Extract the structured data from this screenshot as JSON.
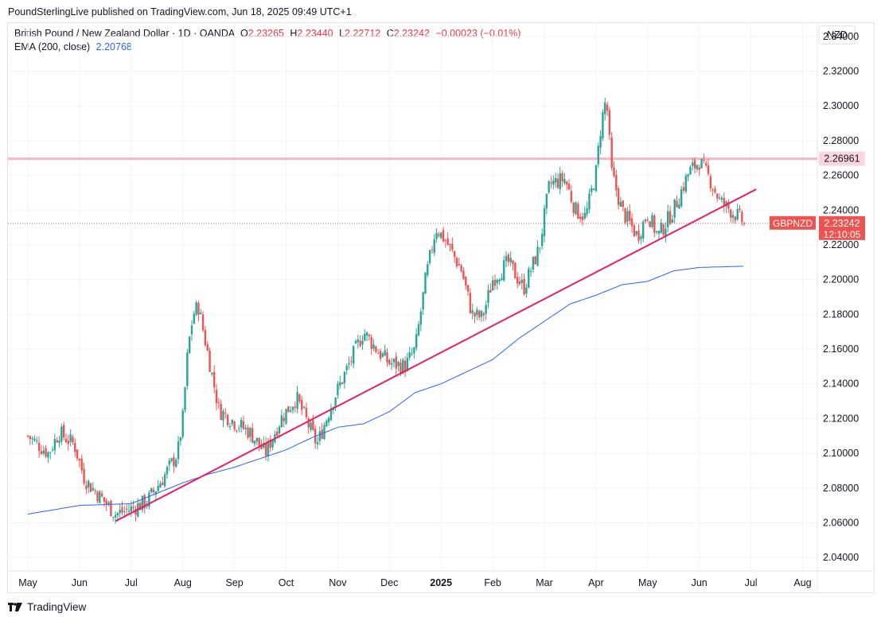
{
  "header": {
    "text": "PoundSterlingLive published on TradingView.com, Jun 18, 2025 09:49 UTC+1"
  },
  "legend": {
    "symbol": "British Pound / New Zealand Dollar · 1D · OANDA",
    "o_label": "O",
    "o_value": "2.23265",
    "h_label": "H",
    "h_value": "2.23440",
    "l_label": "L",
    "l_value": "2.22712",
    "c_label": "C",
    "c_value": "2.23242",
    "change": "−0.00023 (−0.01%)",
    "ema_label": "EMA (200, close)",
    "ema_value": "2.20768"
  },
  "currency_button": "NZD",
  "footer": {
    "brand": "TradingView"
  },
  "colors": {
    "up": "#26a69a",
    "down": "#ef5350",
    "ema": "#2962ff",
    "trend": "#e91e63",
    "level": "#f7b8c2"
  },
  "chart_data": {
    "type": "candlestick",
    "title": "British Pound / New Zealand Dollar · 1D · OANDA",
    "symbol": "GBPNZD",
    "ylim": [
      2.03,
      2.35
    ],
    "y_ticks": [
      "2.04000",
      "2.06000",
      "2.08000",
      "2.10000",
      "2.12000",
      "2.14000",
      "2.16000",
      "2.18000",
      "2.20000",
      "2.22000",
      "2.24000",
      "2.26000",
      "2.28000",
      "2.30000",
      "2.32000",
      "2.34000"
    ],
    "x_ticks": [
      {
        "label": "May",
        "month": 0
      },
      {
        "label": "Jun",
        "month": 1
      },
      {
        "label": "Jul",
        "month": 2
      },
      {
        "label": "Aug",
        "month": 3
      },
      {
        "label": "Sep",
        "month": 4
      },
      {
        "label": "Oct",
        "month": 5
      },
      {
        "label": "Nov",
        "month": 6
      },
      {
        "label": "Dec",
        "month": 7
      },
      {
        "label": "2025",
        "month": 8
      },
      {
        "label": "Feb",
        "month": 9
      },
      {
        "label": "Mar",
        "month": 10
      },
      {
        "label": "Apr",
        "month": 11
      },
      {
        "label": "May",
        "month": 12
      },
      {
        "label": "Jun",
        "month": 13
      },
      {
        "label": "Jul",
        "month": 14
      },
      {
        "label": "Aug",
        "month": 15
      }
    ],
    "closes": [
      [
        0.0,
        2.11
      ],
      [
        0.4,
        2.1
      ],
      [
        0.6,
        2.112
      ],
      [
        0.9,
        2.105
      ],
      [
        1.1,
        2.085
      ],
      [
        1.4,
        2.075
      ],
      [
        1.7,
        2.065
      ],
      [
        2.0,
        2.068
      ],
      [
        2.3,
        2.072
      ],
      [
        2.6,
        2.085
      ],
      [
        2.9,
        2.1
      ],
      [
        3.0,
        2.12
      ],
      [
        3.1,
        2.16
      ],
      [
        3.2,
        2.18
      ],
      [
        3.3,
        2.185
      ],
      [
        3.5,
        2.155
      ],
      [
        3.7,
        2.125
      ],
      [
        4.0,
        2.118
      ],
      [
        4.3,
        2.112
      ],
      [
        4.6,
        2.1
      ],
      [
        4.9,
        2.12
      ],
      [
        5.2,
        2.132
      ],
      [
        5.6,
        2.105
      ],
      [
        5.9,
        2.13
      ],
      [
        6.2,
        2.15
      ],
      [
        6.5,
        2.17
      ],
      [
        6.8,
        2.158
      ],
      [
        7.0,
        2.152
      ],
      [
        7.3,
        2.15
      ],
      [
        7.5,
        2.16
      ],
      [
        7.7,
        2.2
      ],
      [
        7.9,
        2.23
      ],
      [
        8.1,
        2.222
      ],
      [
        8.4,
        2.205
      ],
      [
        8.6,
        2.18
      ],
      [
        8.8,
        2.178
      ],
      [
        9.0,
        2.2
      ],
      [
        9.3,
        2.21
      ],
      [
        9.6,
        2.195
      ],
      [
        9.9,
        2.218
      ],
      [
        10.1,
        2.255
      ],
      [
        10.4,
        2.258
      ],
      [
        10.6,
        2.24
      ],
      [
        10.8,
        2.236
      ],
      [
        11.0,
        2.262
      ],
      [
        11.1,
        2.29
      ],
      [
        11.2,
        2.305
      ],
      [
        11.3,
        2.262
      ],
      [
        11.5,
        2.24
      ],
      [
        11.8,
        2.225
      ],
      [
        12.0,
        2.238
      ],
      [
        12.2,
        2.225
      ],
      [
        12.5,
        2.24
      ],
      [
        12.8,
        2.262
      ],
      [
        13.0,
        2.268
      ],
      [
        13.2,
        2.258
      ],
      [
        13.4,
        2.245
      ],
      [
        13.6,
        2.24
      ],
      [
        13.8,
        2.235
      ],
      [
        13.87,
        2.2324
      ]
    ],
    "ema": [
      [
        0.0,
        2.065
      ],
      [
        1.0,
        2.07
      ],
      [
        2.0,
        2.071
      ],
      [
        3.0,
        2.083
      ],
      [
        3.5,
        2.088
      ],
      [
        4.0,
        2.092
      ],
      [
        4.5,
        2.097
      ],
      [
        5.0,
        2.102
      ],
      [
        5.5,
        2.109
      ],
      [
        6.0,
        2.115
      ],
      [
        6.5,
        2.117
      ],
      [
        7.0,
        2.124
      ],
      [
        7.5,
        2.135
      ],
      [
        8.0,
        2.14
      ],
      [
        8.5,
        2.147
      ],
      [
        9.0,
        2.154
      ],
      [
        9.5,
        2.166
      ],
      [
        10.0,
        2.176
      ],
      [
        10.5,
        2.186
      ],
      [
        11.0,
        2.191
      ],
      [
        11.5,
        2.197
      ],
      [
        12.0,
        2.199
      ],
      [
        12.5,
        2.205
      ],
      [
        13.0,
        2.207
      ],
      [
        13.87,
        2.2077
      ]
    ],
    "trendline": {
      "from": [
        1.7,
        2.061
      ],
      "to": [
        14.1,
        2.252
      ]
    },
    "level": {
      "value": 2.26961,
      "label": "2.26961"
    },
    "last_price": {
      "value": 2.23242,
      "label": "2.23242",
      "symbol": "GBPNZD",
      "countdown": "12:10:05"
    }
  }
}
